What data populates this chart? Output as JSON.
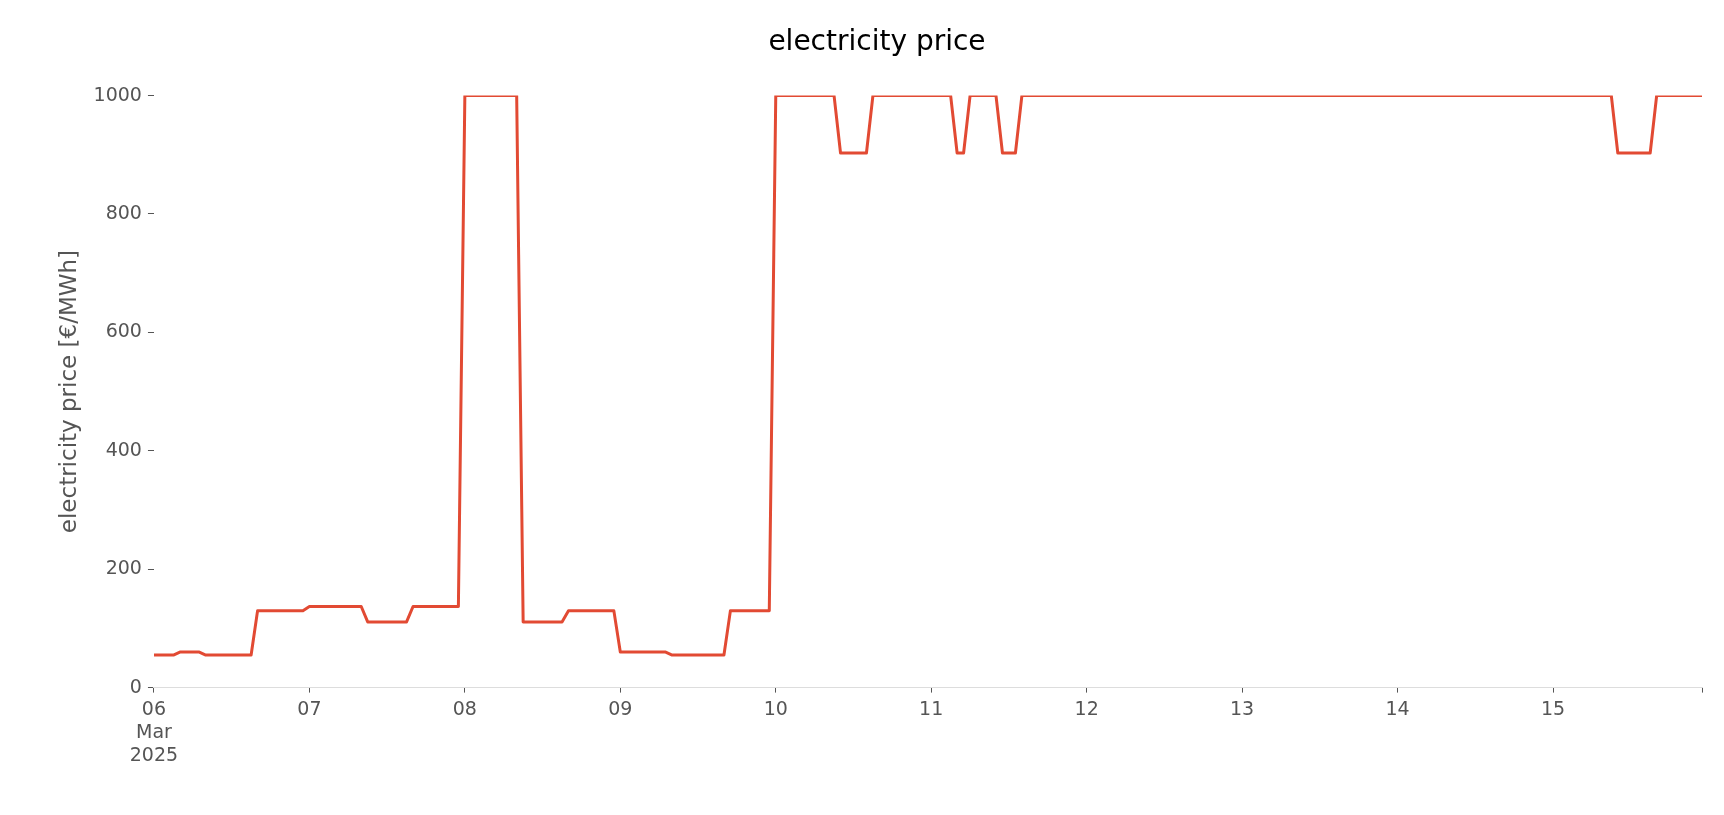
{
  "chart_data": {
    "type": "line",
    "title": "electricity price",
    "ylabel": "electricity price [€/MWh]",
    "color": "#e24a33",
    "x": [
      "2025-03-06T00:00",
      "2025-03-06T03:00",
      "2025-03-06T04:00",
      "2025-03-06T07:00",
      "2025-03-06T08:00",
      "2025-03-06T15:00",
      "2025-03-06T16:00",
      "2025-03-06T23:00",
      "2025-03-07T00:00",
      "2025-03-07T08:00",
      "2025-03-07T09:00",
      "2025-03-07T15:00",
      "2025-03-07T16:00",
      "2025-03-07T23:00",
      "2025-03-08T00:00",
      "2025-03-08T08:00",
      "2025-03-08T09:00",
      "2025-03-08T15:00",
      "2025-03-08T16:00",
      "2025-03-08T23:00",
      "2025-03-09T00:00",
      "2025-03-09T07:00",
      "2025-03-09T08:00",
      "2025-03-09T16:00",
      "2025-03-09T17:00",
      "2025-03-09T23:00",
      "2025-03-10T00:00",
      "2025-03-10T09:00",
      "2025-03-10T10:00",
      "2025-03-10T14:00",
      "2025-03-10T15:00",
      "2025-03-11T03:00",
      "2025-03-11T04:00",
      "2025-03-11T05:00",
      "2025-03-11T06:00",
      "2025-03-11T10:00",
      "2025-03-11T11:00",
      "2025-03-11T13:00",
      "2025-03-11T14:00",
      "2025-03-15T09:00",
      "2025-03-15T10:00",
      "2025-03-15T15:00",
      "2025-03-15T16:00",
      "2025-03-15T23:00"
    ],
    "values": [
      55,
      55,
      60,
      60,
      55,
      55,
      130,
      130,
      137,
      137,
      111,
      111,
      137,
      137,
      1000,
      1000,
      111,
      111,
      130,
      130,
      60,
      60,
      55,
      55,
      130,
      130,
      1000,
      1000,
      903,
      903,
      1000,
      1000,
      903,
      903,
      1000,
      1000,
      903,
      903,
      1000,
      1000,
      903,
      903,
      1000,
      1000
    ],
    "xlim": [
      "2025-03-06T00:00",
      "2025-03-15T23:00"
    ],
    "xticks": [
      {
        "value": "2025-03-06T00:00",
        "label": "06\nMar\n2025"
      },
      {
        "value": "2025-03-07T00:00",
        "label": "07"
      },
      {
        "value": "2025-03-08T00:00",
        "label": "08"
      },
      {
        "value": "2025-03-09T00:00",
        "label": "09"
      },
      {
        "value": "2025-03-10T00:00",
        "label": "10"
      },
      {
        "value": "2025-03-11T00:00",
        "label": "11"
      },
      {
        "value": "2025-03-12T00:00",
        "label": "12"
      },
      {
        "value": "2025-03-13T00:00",
        "label": "13"
      },
      {
        "value": "2025-03-14T00:00",
        "label": "14"
      },
      {
        "value": "2025-03-15T00:00",
        "label": "15"
      },
      {
        "value": "2025-03-15T23:00",
        "label": null
      }
    ],
    "ylim": [
      0,
      1000
    ],
    "yticks": [
      0,
      200,
      400,
      600,
      800,
      1000
    ]
  }
}
